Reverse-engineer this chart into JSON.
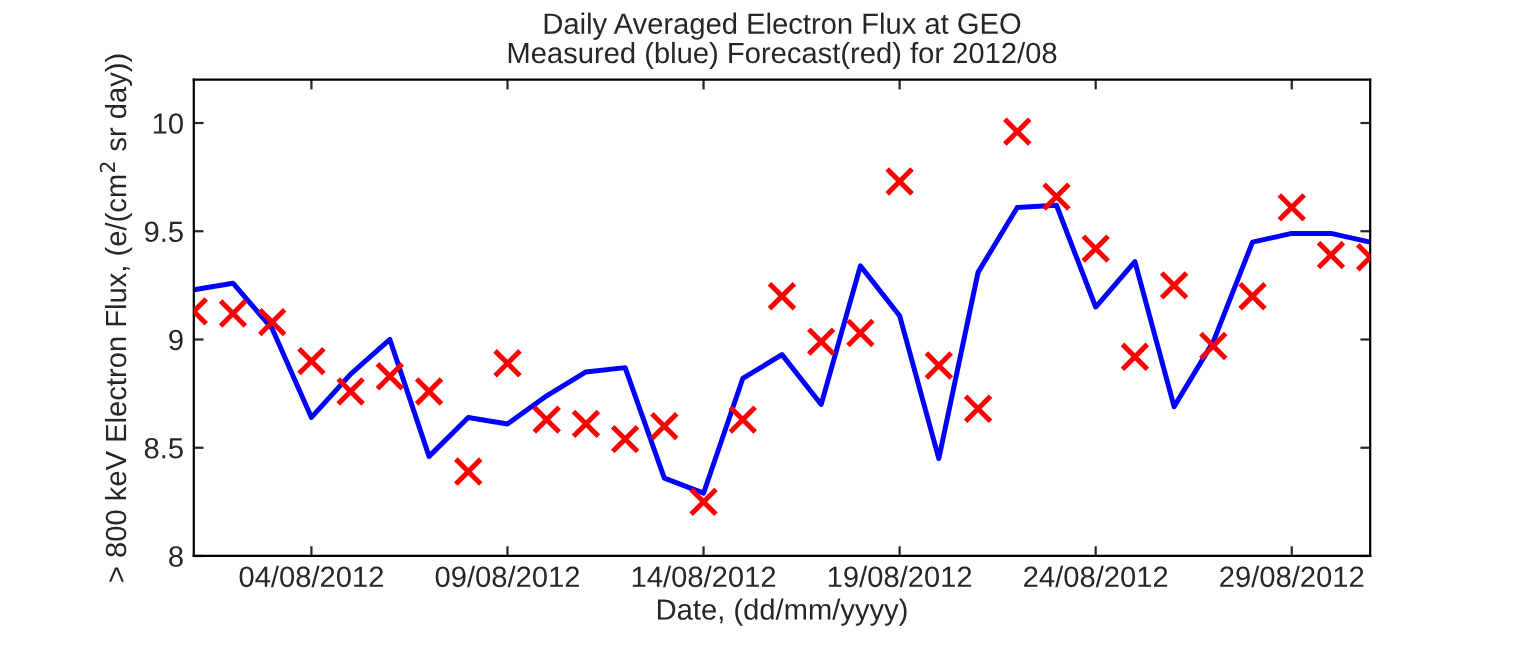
{
  "chart_data": {
    "type": "line",
    "title": "Daily Averaged Electron Flux at GEO\nMeasured (blue) Forecast(red) for 2012/08",
    "xlabel": "Date, (dd/mm/yyyy)",
    "ylabel": "> 800 keV Electron Flux, (e/(cm$^{2}$ sr day))",
    "x": [
      "2012-08-01",
      "2012-08-02",
      "2012-08-03",
      "2012-08-04",
      "2012-08-05",
      "2012-08-06",
      "2012-08-07",
      "2012-08-08",
      "2012-08-09",
      "2012-08-10",
      "2012-08-11",
      "2012-08-12",
      "2012-08-13",
      "2012-08-14",
      "2012-08-15",
      "2012-08-16",
      "2012-08-17",
      "2012-08-18",
      "2012-08-19",
      "2012-08-20",
      "2012-08-21",
      "2012-08-22",
      "2012-08-23",
      "2012-08-24",
      "2012-08-25",
      "2012-08-26",
      "2012-08-27",
      "2012-08-28",
      "2012-08-29",
      "2012-08-30",
      "2012-08-31"
    ],
    "series": [
      {
        "color": "#0000ff",
        "marker": "none",
        "values": [
          9.23,
          9.26,
          9.05,
          8.64,
          8.84,
          9.0,
          8.46,
          8.64,
          8.61,
          8.74,
          8.85,
          8.87,
          8.36,
          8.29,
          8.82,
          8.93,
          8.7,
          9.34,
          9.11,
          8.45,
          9.31,
          9.61,
          9.62,
          9.15,
          9.36,
          8.69,
          8.99,
          9.45,
          9.49,
          9.49,
          9.45
        ]
      },
      {
        "type": "scatter",
        "color": "#ff0000",
        "marker": "cross",
        "values": [
          9.13,
          9.12,
          9.08,
          8.9,
          8.76,
          8.83,
          8.76,
          8.39,
          8.89,
          8.63,
          8.61,
          8.54,
          8.6,
          8.25,
          8.63,
          9.2,
          8.99,
          9.03,
          9.73,
          8.88,
          8.68,
          9.96,
          9.66,
          9.42,
          8.92,
          9.25,
          8.97,
          9.2,
          9.61,
          9.39,
          9.38
        ]
      }
    ],
    "xlim": [
      "2012-08-01",
      "2012-08-31"
    ],
    "xticks": [
      {
        "value": "2012-08-04",
        "label": "04/08/2012"
      },
      {
        "value": "2012-08-09",
        "label": "09/08/2012"
      },
      {
        "value": "2012-08-14",
        "label": "14/08/2012"
      },
      {
        "value": "2012-08-19",
        "label": "19/08/2012"
      },
      {
        "value": "2012-08-24",
        "label": "24/08/2012"
      },
      {
        "value": "2012-08-29",
        "label": "29/08/2012"
      }
    ],
    "ylim": [
      8,
      10.2
    ],
    "yticks": [
      8,
      8.5,
      9,
      9.5,
      10
    ],
    "grid": false,
    "legend": false
  }
}
